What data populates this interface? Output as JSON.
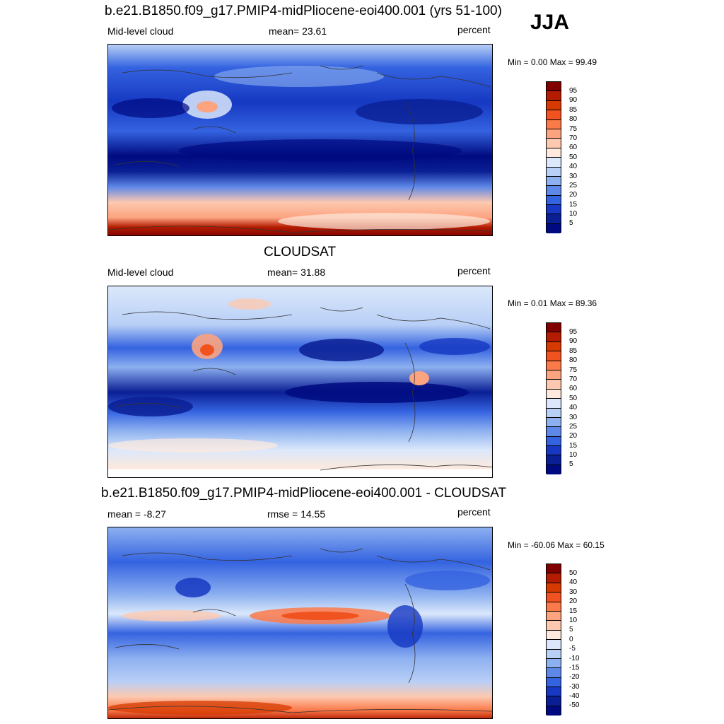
{
  "season": "JJA",
  "panels": [
    {
      "title": "b.e21.B1850.f09_g17.PMIP4-midPliocene-eoi400.001 (yrs 51-100)",
      "left_label": "Mid-level cloud",
      "center_label": "mean=  23.61",
      "right_label": "percent",
      "minmax": "Min =   0.00 Max =  99.49",
      "colorbar_labels": [
        "95",
        "90",
        "85",
        "80",
        "75",
        "70",
        "60",
        "50",
        "40",
        "30",
        "25",
        "20",
        "15",
        "10",
        "5"
      ]
    },
    {
      "title": "CLOUDSAT",
      "left_label": "Mid-level cloud",
      "center_label": "mean=  31.88",
      "right_label": "percent",
      "minmax": "Min =   0.01 Max =  89.36",
      "colorbar_labels": [
        "95",
        "90",
        "85",
        "80",
        "75",
        "70",
        "60",
        "50",
        "40",
        "30",
        "25",
        "20",
        "15",
        "10",
        "5"
      ]
    },
    {
      "title": "b.e21.B1850.f09_g17.PMIP4-midPliocene-eoi400.001 - CLOUDSAT",
      "left_label": "mean =  -8.27",
      "center_label": "rmse =  14.55",
      "right_label": "percent",
      "minmax": "Min = -60.06 Max =  60.15",
      "colorbar_labels": [
        "50",
        "40",
        "30",
        "20",
        "15",
        "10",
        "5",
        "0",
        "-5",
        "-10",
        "-15",
        "-20",
        "-30",
        "-40",
        "-50"
      ]
    }
  ],
  "colorbar_colors": [
    "#800000",
    "#b31c00",
    "#d63a00",
    "#f0531f",
    "#fb7a4a",
    "#fca37f",
    "#fcc9b0",
    "#fde9dd",
    "#dbe8fb",
    "#b8cff6",
    "#8db0f0",
    "#5e88e8",
    "#3463e0",
    "#1638c2",
    "#0a1f94",
    "#000a80"
  ]
}
